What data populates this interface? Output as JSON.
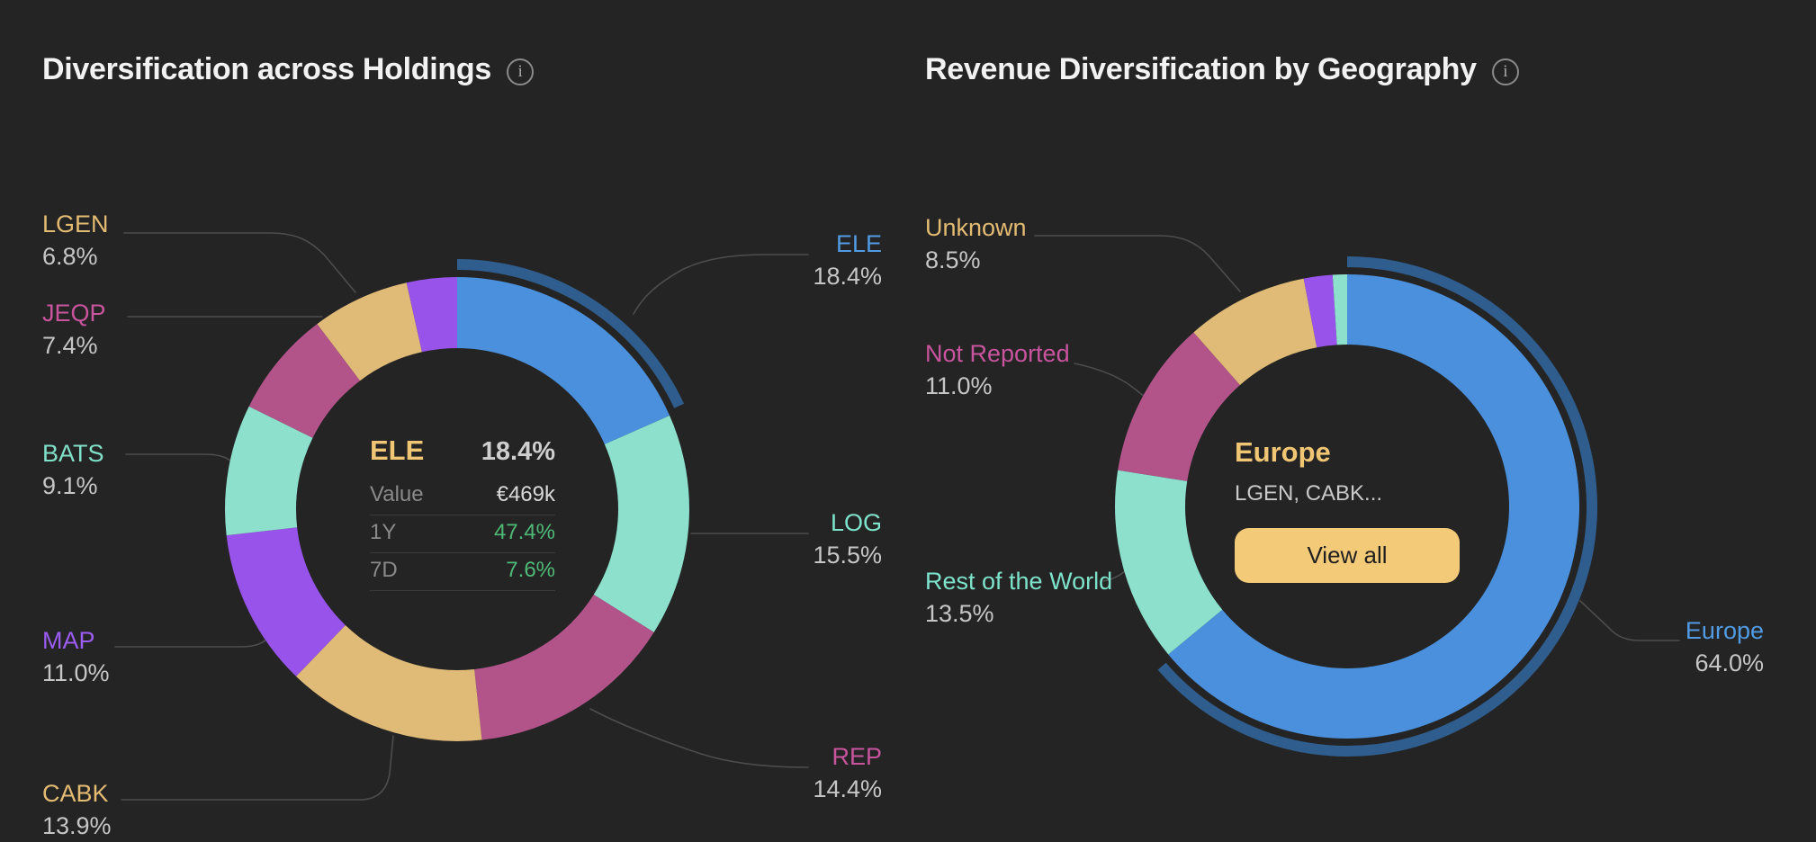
{
  "page": {
    "background": "#242424",
    "accent_gold": "#f0c674",
    "positive_green": "#4fba77"
  },
  "left_chart": {
    "title": "Diversification across Holdings",
    "info_icon": "i",
    "center": {
      "ticker": "ELE",
      "pct": "18.4%",
      "rows": [
        {
          "label": "Value",
          "value": "€469k",
          "color": "#d9d9d9"
        },
        {
          "label": "1Y",
          "value": "47.4%",
          "color": "#4fba77"
        },
        {
          "label": "7D",
          "value": "7.6%",
          "color": "#4fba77"
        }
      ]
    }
  },
  "right_chart": {
    "title": "Revenue Diversification by Geography",
    "info_icon": "i",
    "center": {
      "region": "Europe",
      "holdings": "LGEN, CABK...",
      "view_all_label": "View all"
    }
  },
  "chart_data": [
    {
      "type": "pie",
      "subtype": "donut",
      "title": "Diversification across Holdings",
      "legend_position": "callout-labels",
      "selected_highlight_color": "#2f5d8e",
      "segments": [
        {
          "label": "ELE",
          "value": 18.4,
          "pct_label": "18.4%",
          "color": "#4a90dc",
          "label_color": "#509be4",
          "selected": true
        },
        {
          "label": "LOG",
          "value": 15.5,
          "pct_label": "15.5%",
          "color": "#8ce0cc",
          "label_color": "#7ee3cb",
          "selected": false
        },
        {
          "label": "REP",
          "value": 14.4,
          "pct_label": "14.4%",
          "color": "#b2548a",
          "label_color": "#c9549e",
          "selected": false
        },
        {
          "label": "CABK",
          "value": 13.9,
          "pct_label": "13.9%",
          "color": "#e0ba77",
          "label_color": "#e4bb72",
          "selected": false
        },
        {
          "label": "MAP",
          "value": 11.0,
          "pct_label": "11.0%",
          "color": "#9853ea",
          "label_color": "#9b5cf2",
          "selected": false
        },
        {
          "label": "BATS",
          "value": 9.1,
          "pct_label": "9.1%",
          "color": "#8ce0cc",
          "label_color": "#80e0c8",
          "selected": false
        },
        {
          "label": "JEQP",
          "value": 7.4,
          "pct_label": "7.4%",
          "color": "#b2548a",
          "label_color": "#c9549e",
          "selected": false
        },
        {
          "label": "LGEN",
          "value": 6.8,
          "pct_label": "6.8%",
          "color": "#e0ba77",
          "label_color": "#e4bb72",
          "selected": false
        },
        {
          "label": "",
          "value": 3.5,
          "pct_label": "",
          "color": "#9853ea",
          "label_color": "#9853ea",
          "selected": false
        }
      ],
      "center_stats": {
        "ticker": "ELE",
        "pct": "18.4%",
        "value": "€469k",
        "1Y": "47.4%",
        "7D": "7.6%"
      }
    },
    {
      "type": "pie",
      "subtype": "donut",
      "title": "Revenue Diversification by Geography",
      "legend_position": "callout-labels",
      "selected_highlight_color": "#2f5d8e",
      "segments": [
        {
          "label": "Europe",
          "value": 64.0,
          "pct_label": "64.0%",
          "color": "#4a90dc",
          "label_color": "#509be4",
          "selected": true
        },
        {
          "label": "Rest of the World",
          "value": 13.5,
          "pct_label": "13.5%",
          "color": "#8ce0cc",
          "label_color": "#7ee3cb",
          "selected": false
        },
        {
          "label": "Not Reported",
          "value": 11.0,
          "pct_label": "11.0%",
          "color": "#b2548a",
          "label_color": "#c9549e",
          "selected": false
        },
        {
          "label": "Unknown",
          "value": 8.5,
          "pct_label": "8.5%",
          "color": "#e0ba77",
          "label_color": "#e4bb72",
          "selected": false
        },
        {
          "label": "",
          "value": 2.0,
          "pct_label": "",
          "color": "#9853ea",
          "label_color": "#9853ea",
          "selected": false
        },
        {
          "label": "",
          "value": 1.0,
          "pct_label": "",
          "color": "#8ce0cc",
          "label_color": "#8ce0cc",
          "selected": false
        }
      ],
      "center_info": {
        "region": "Europe",
        "holdings": "LGEN, CABK...",
        "action": "View all"
      }
    }
  ]
}
